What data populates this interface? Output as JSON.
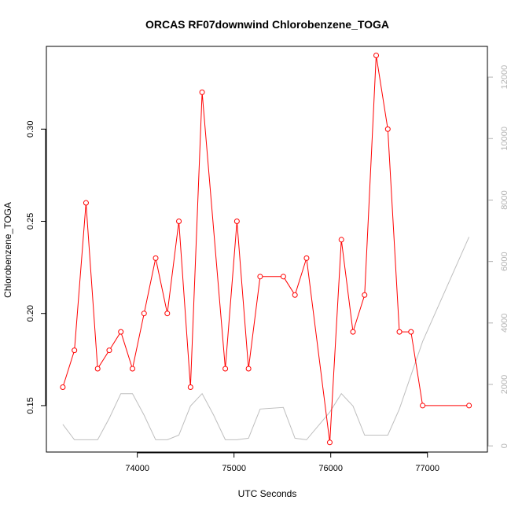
{
  "chart_data": {
    "type": "line",
    "title": "ORCAS RF07downwind Chlorobenzene_TOGA",
    "xlabel": "UTC Seconds",
    "ylabel": "Chlorobenzene_TOGA",
    "xlim": [
      73060,
      77620
    ],
    "ylim": [
      0.1248,
      0.3449
    ],
    "y2lim": [
      -200,
      13000
    ],
    "x_ticks": [
      74000,
      75000,
      76000,
      77000
    ],
    "y_ticks": [
      0.15,
      0.2,
      0.25,
      0.3
    ],
    "y_tick_labels": [
      "0.15",
      "0.20",
      "0.25",
      "0.30"
    ],
    "y2_ticks": [
      0,
      2000,
      4000,
      6000,
      8000,
      10000,
      12000
    ],
    "colors": {
      "primary": "#ff0000",
      "secondary": "#bebebe",
      "right_axis": "#b3b3b3"
    },
    "series": [
      {
        "axis": "left",
        "color": "#ff0000",
        "marker": "open-circle",
        "x": [
          73230,
          73350,
          73470,
          73590,
          73710,
          73830,
          73950,
          74070,
          74190,
          74310,
          74430,
          74550,
          74670,
          74910,
          75030,
          75150,
          75270,
          75510,
          75630,
          75750,
          75990,
          76110,
          76230,
          76350,
          76470,
          76590,
          76710,
          76830,
          76950,
          77430
        ],
        "values": [
          0.16,
          0.18,
          0.26,
          0.17,
          0.18,
          0.19,
          0.17,
          0.2,
          0.23,
          0.2,
          0.25,
          0.16,
          0.32,
          0.17,
          0.25,
          0.17,
          0.22,
          0.22,
          0.21,
          0.23,
          0.13,
          0.24,
          0.19,
          0.21,
          0.34,
          0.3,
          0.19,
          0.19,
          0.15,
          0.15
        ]
      },
      {
        "axis": "right",
        "color": "#bebebe",
        "marker": "none",
        "x": [
          73230,
          73350,
          73590,
          73710,
          73830,
          73950,
          74070,
          74190,
          74310,
          74430,
          74550,
          74670,
          74790,
          74910,
          75030,
          75150,
          75270,
          75510,
          75630,
          75750,
          75990,
          76110,
          76230,
          76350,
          76470,
          76590,
          76710,
          76830,
          76950,
          77430
        ],
        "values": [
          700,
          200,
          200,
          900,
          1700,
          1700,
          1000,
          200,
          200,
          350,
          1300,
          1700,
          1000,
          200,
          200,
          250,
          1200,
          1250,
          250,
          200,
          1100,
          1700,
          1300,
          350,
          350,
          350,
          1200,
          2300,
          3400,
          6800
        ]
      }
    ]
  }
}
